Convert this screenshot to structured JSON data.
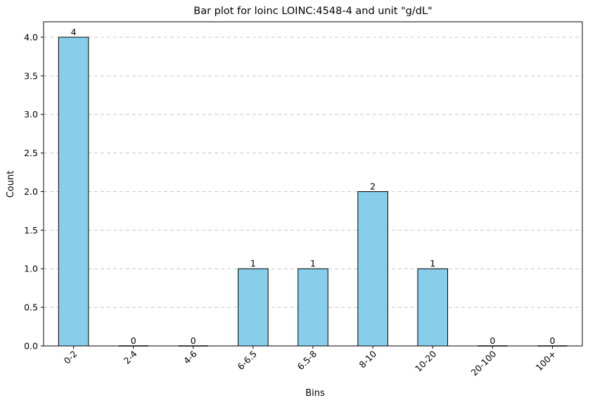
{
  "chart_data": {
    "type": "bar",
    "title": "Bar plot for loinc LOINC:4548-4 and unit \"g/dL\"",
    "xlabel": "Bins",
    "ylabel": "Count",
    "categories": [
      "0-2",
      "2-4",
      "4-6",
      "6-6.5",
      "6.5-8",
      "8-10",
      "10-20",
      "20-100",
      "100+"
    ],
    "values": [
      4,
      0,
      0,
      1,
      1,
      2,
      1,
      0,
      0
    ],
    "data_labels": [
      "4",
      "0",
      "0",
      "1",
      "1",
      "2",
      "1",
      "0",
      "0"
    ],
    "ylim": [
      0,
      4.2
    ],
    "yticks": [
      0.0,
      0.5,
      1.0,
      1.5,
      2.0,
      2.5,
      3.0,
      3.5,
      4.0
    ],
    "ytick_labels": [
      "0.0",
      "0.5",
      "1.0",
      "1.5",
      "2.0",
      "2.5",
      "3.0",
      "3.5",
      "4.0"
    ],
    "grid": {
      "y": true,
      "x": false,
      "style": "dashed"
    },
    "colors": {
      "bar_fill": "#87ceeb",
      "bar_edge": "#000000",
      "grid": "#c8c8c8"
    }
  }
}
